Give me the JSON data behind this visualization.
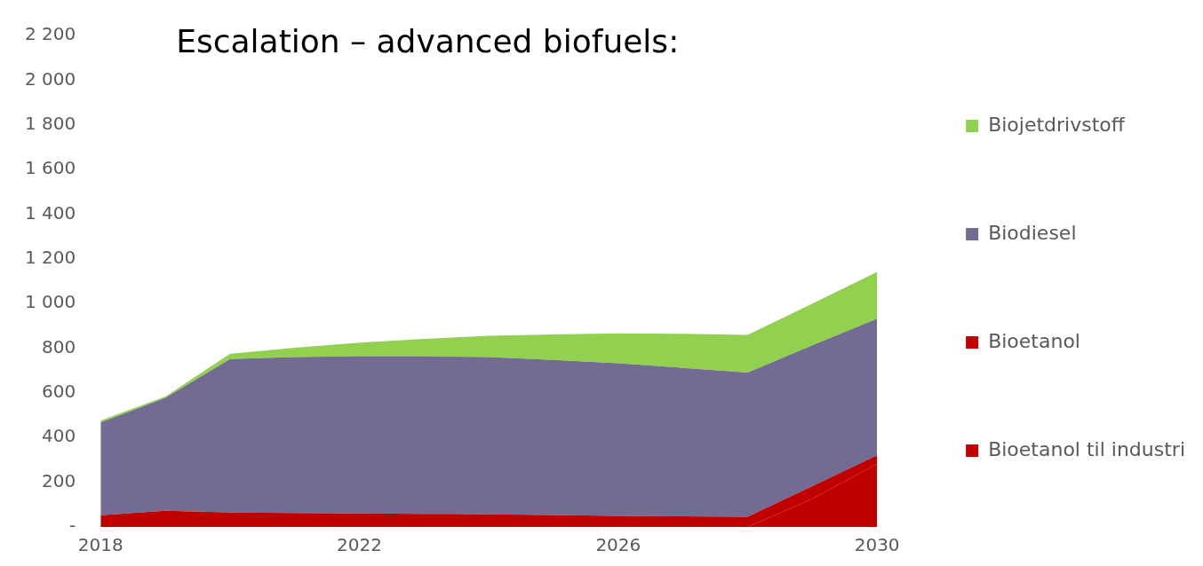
{
  "chart_data": {
    "type": "area",
    "title": "Escalation – advanced biofuels:",
    "stacked": true,
    "legend": "right",
    "x": [
      2018,
      2019,
      2020,
      2021,
      2022,
      2023,
      2024,
      2025,
      2026,
      2027,
      2028,
      2029,
      2030
    ],
    "xlim": [
      2018,
      2030
    ],
    "xticks": [
      2018,
      2022,
      2026,
      2030
    ],
    "ylim": [
      0,
      2200
    ],
    "yticks": [
      {
        "value": 0,
        "label": "-"
      },
      {
        "value": 200,
        "label": "200"
      },
      {
        "value": 400,
        "label": "400"
      },
      {
        "value": 600,
        "label": "600"
      },
      {
        "value": 800,
        "label": "800"
      },
      {
        "value": 1000,
        "label": "1 000"
      },
      {
        "value": 1200,
        "label": "1 200"
      },
      {
        "value": 1400,
        "label": "1 400"
      },
      {
        "value": 1600,
        "label": "1 600"
      },
      {
        "value": 1800,
        "label": "1 800"
      },
      {
        "value": 2000,
        "label": "2 000"
      },
      {
        "value": 2200,
        "label": "2 200"
      }
    ],
    "series": [
      {
        "name": "Bioetanol til industri",
        "color": "#c00000",
        "values": [
          0,
          0,
          0,
          0,
          0,
          0,
          0,
          0,
          0,
          0,
          0,
          126,
          283
        ]
      },
      {
        "name": "Bioetanol",
        "color": "#c00000",
        "values": [
          53,
          72,
          65,
          63,
          61,
          59,
          57,
          54,
          50,
          48,
          46,
          57,
          38
        ]
      },
      {
        "name": "Biodiesel",
        "color": "#736b92",
        "values": [
          415,
          506,
          687,
          697,
          703,
          705,
          703,
          694,
          683,
          664,
          645,
          630,
          611
        ]
      },
      {
        "name": "Biojetdrivstoff",
        "color": "#92d050",
        "values": [
          9,
          6,
          23,
          42,
          61,
          78,
          96,
          114,
          134,
          153,
          169,
          187,
          210
        ]
      }
    ]
  }
}
